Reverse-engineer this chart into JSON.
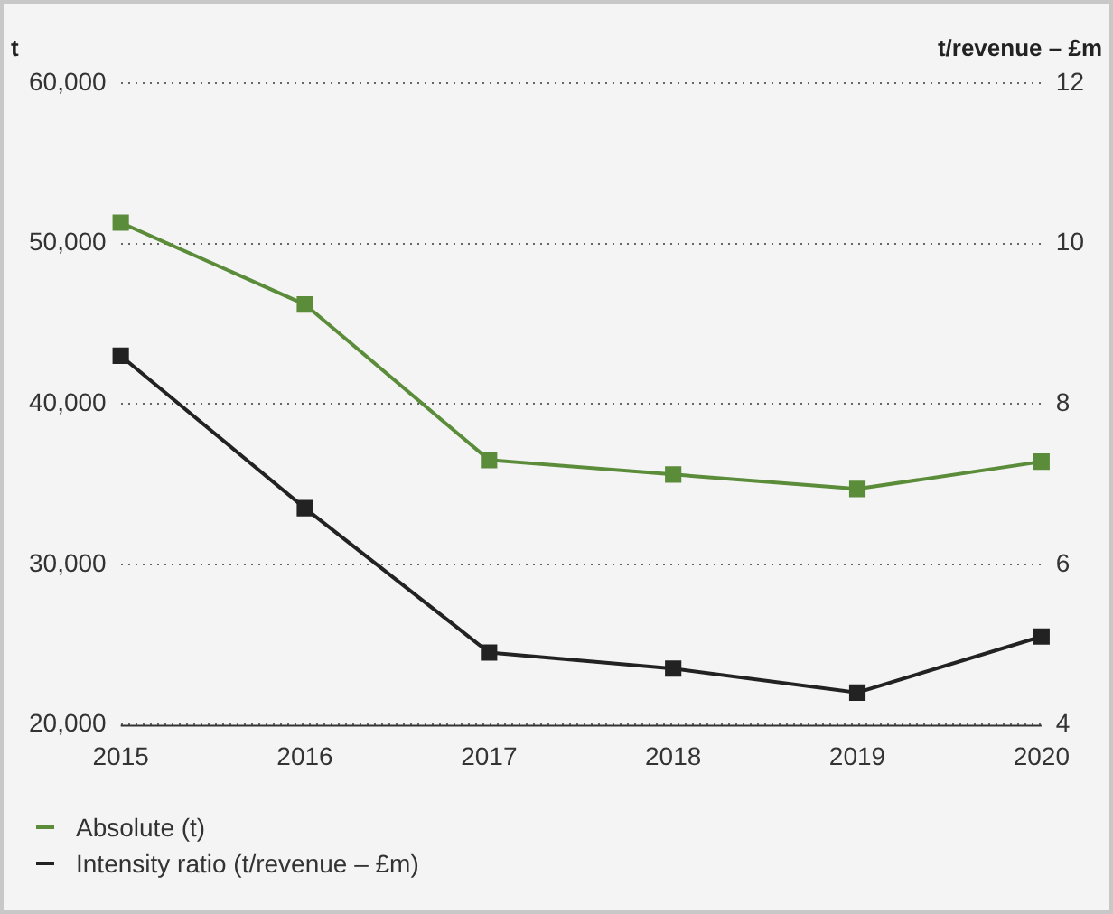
{
  "chart_data": {
    "type": "line",
    "xlabel": null,
    "ylabel": "t",
    "y2label": "t/revenue – £m",
    "categories": [
      "2015",
      "2016",
      "2017",
      "2018",
      "2019",
      "2020"
    ],
    "series": [
      {
        "name": "Absolute (t)",
        "color": "#5b8c3a",
        "values": [
          51300,
          46200,
          36500,
          35600,
          34700,
          36400
        ]
      },
      {
        "name": "Intensity ratio (t/revenue – £m)",
        "color": "#222222",
        "axis": "y2",
        "values": [
          8.6,
          6.7,
          4.9,
          4.7,
          4.4,
          5.1
        ]
      }
    ],
    "ylim": [
      20000,
      60000
    ],
    "yticks": [
      {
        "value": 20000,
        "label": "20,000"
      },
      {
        "value": 30000,
        "label": "30,000"
      },
      {
        "value": 40000,
        "label": "40,000"
      },
      {
        "value": 50000,
        "label": "50,000"
      },
      {
        "value": 60000,
        "label": "60,000"
      }
    ],
    "y2lim": [
      4,
      12
    ],
    "y2ticks": [
      4,
      6,
      8,
      10,
      12
    ],
    "grid": "y",
    "legend": "bottom left",
    "marker": "square",
    "line_style": "solid"
  }
}
